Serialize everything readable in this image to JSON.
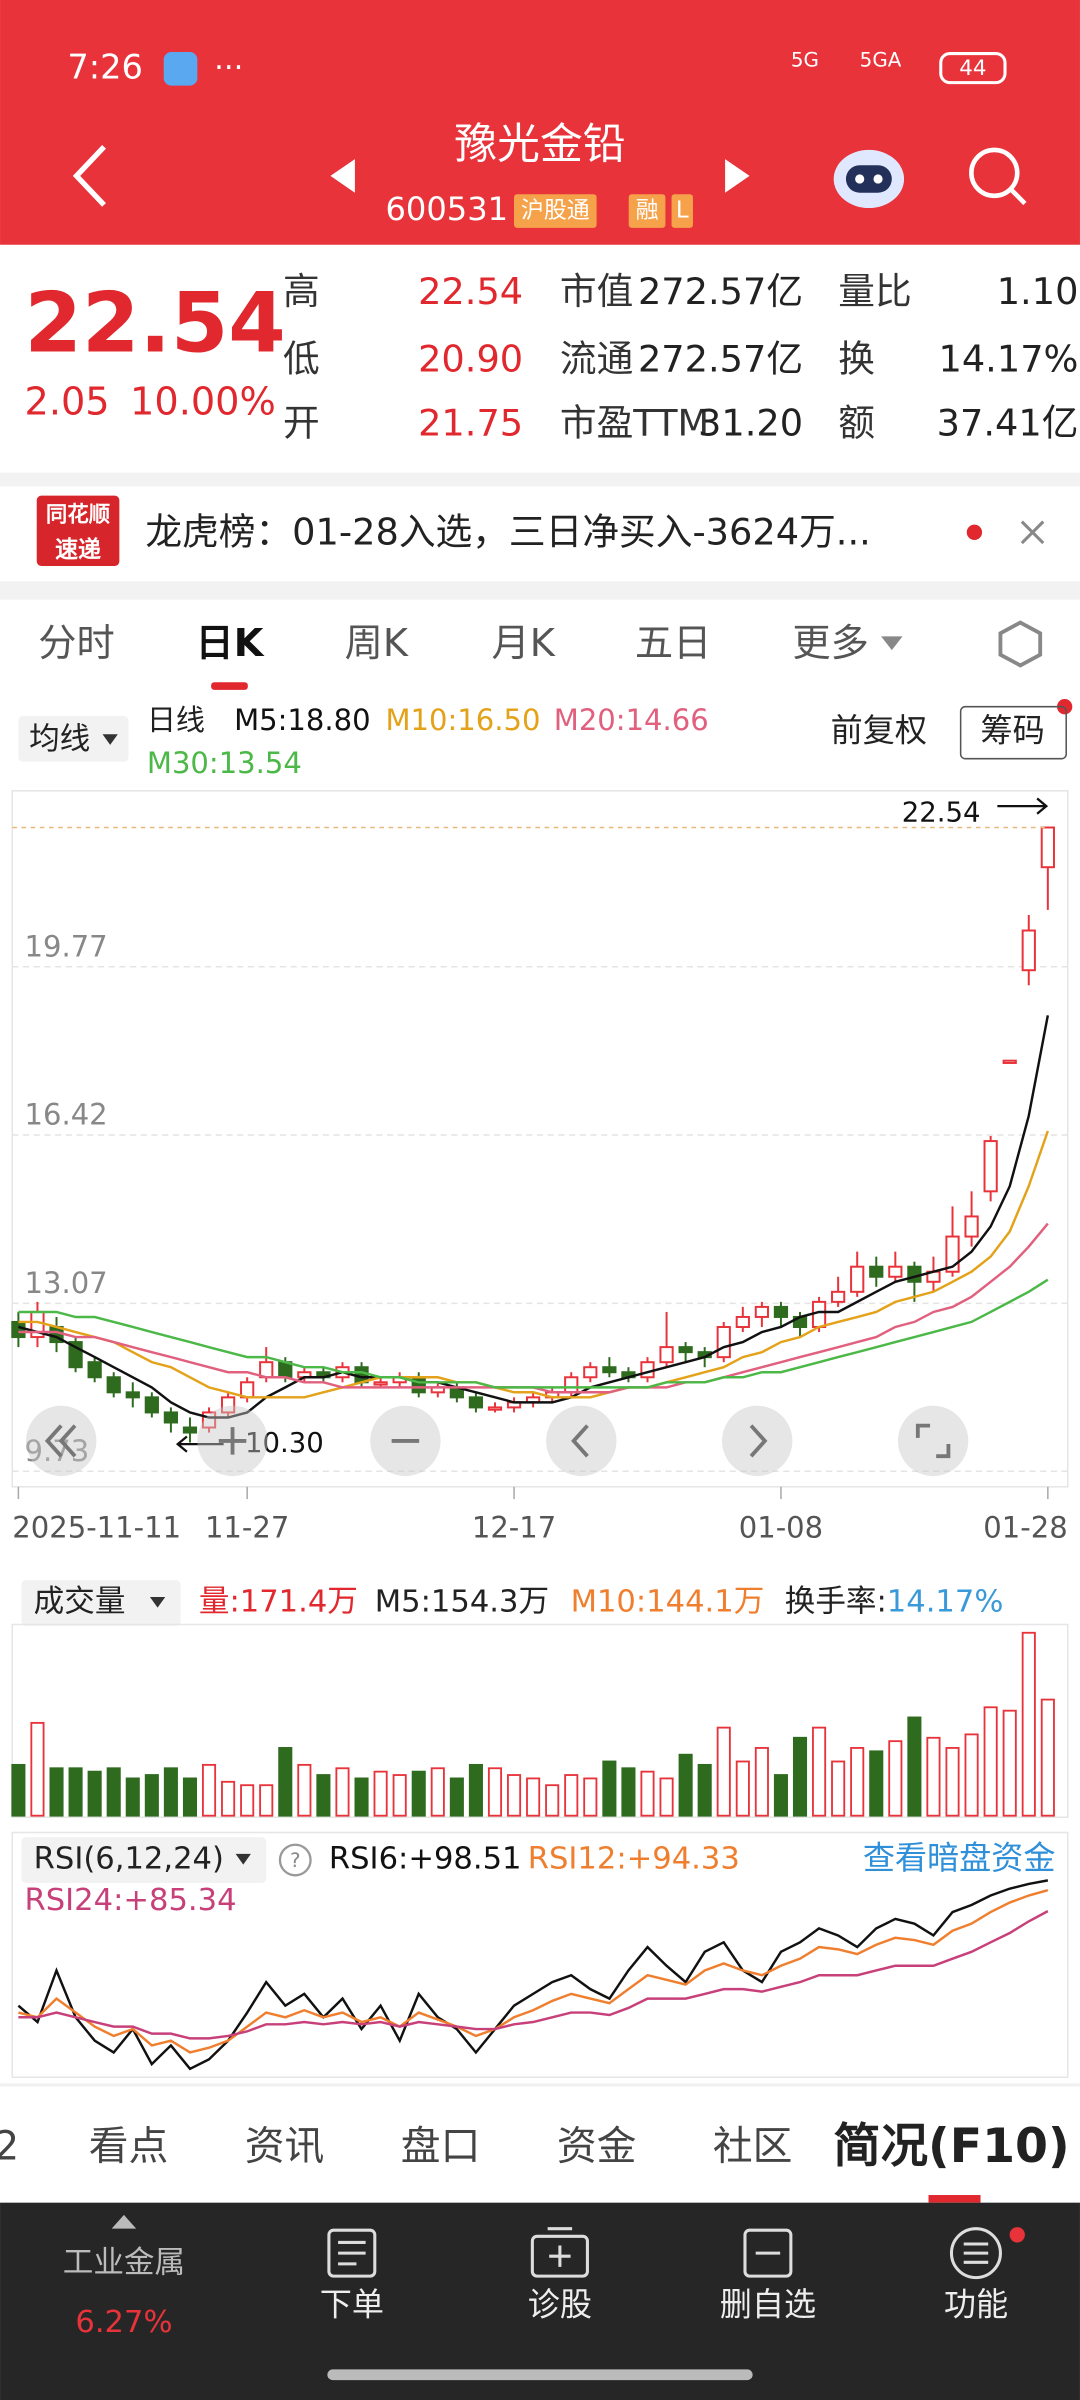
{
  "status_bar": {
    "time": "7:26",
    "network": [
      "5G",
      "5GA"
    ],
    "battery": "44"
  },
  "header": {
    "title": "豫光金铅",
    "code": "600531",
    "tags": [
      "沪股通",
      "融",
      "L"
    ]
  },
  "quote": {
    "price": "22.54",
    "change": "2.05",
    "change_pct": "10.00%",
    "columns": [
      [
        {
          "label": "高",
          "value": "22.54"
        },
        {
          "label": "低",
          "value": "20.90"
        },
        {
          "label": "开",
          "value": "21.75"
        }
      ],
      [
        {
          "label": "市值",
          "value": "272.57亿"
        },
        {
          "label": "流通",
          "value": "272.57亿"
        },
        {
          "label": "市盈TTM",
          "value": "31.20"
        }
      ],
      [
        {
          "label": "量比",
          "value": "1.10"
        },
        {
          "label": "换",
          "value": "14.17%"
        },
        {
          "label": "额",
          "value": "37.41亿"
        }
      ]
    ]
  },
  "news": {
    "source": [
      "同花顺",
      "速递"
    ],
    "text": "龙虎榜：01-28入选，三日净买入-3624万..."
  },
  "tabs": [
    "分时",
    "日K",
    "周K",
    "月K",
    "五日",
    "更多"
  ],
  "kline": {
    "type": "candlestick",
    "ma_button": "均线",
    "period": "日线",
    "adjust": "前复权",
    "chips": "筹码",
    "categories": [
      "2025-11-11",
      null,
      null,
      null,
      null,
      null,
      null,
      null,
      null,
      null,
      null,
      null,
      "11-27",
      null,
      null,
      null,
      null,
      null,
      null,
      null,
      null,
      null,
      null,
      null,
      null,
      null,
      "12-17",
      null,
      null,
      null,
      null,
      null,
      null,
      null,
      null,
      null,
      null,
      null,
      null,
      null,
      "01-08",
      null,
      null,
      null,
      null,
      null,
      null,
      null,
      null,
      null,
      null,
      null,
      null,
      null,
      "01-28"
    ],
    "candles": [
      [
        12.7,
        12.4,
        12.9,
        12.2
      ],
      [
        12.4,
        12.9,
        13.1,
        12.2
      ],
      [
        12.6,
        12.3,
        12.8,
        12.1
      ],
      [
        12.3,
        11.8,
        12.4,
        11.7
      ],
      [
        11.9,
        11.6,
        12.0,
        11.5
      ],
      [
        11.6,
        11.3,
        11.7,
        11.2
      ],
      [
        11.3,
        11.2,
        11.5,
        11.0
      ],
      [
        11.2,
        10.9,
        11.3,
        10.8
      ],
      [
        10.9,
        10.7,
        11.0,
        10.5
      ],
      [
        10.6,
        10.5,
        10.8,
        10.3
      ],
      [
        10.6,
        10.9,
        11.0,
        10.5
      ],
      [
        10.9,
        11.2,
        11.3,
        10.8
      ],
      [
        11.2,
        11.5,
        11.6,
        11.1
      ],
      [
        11.6,
        11.9,
        12.2,
        11.5
      ],
      [
        11.9,
        11.6,
        12.0,
        11.5
      ],
      [
        11.6,
        11.7,
        11.8,
        11.5
      ],
      [
        11.7,
        11.6,
        11.8,
        11.5
      ],
      [
        11.6,
        11.8,
        11.9,
        11.5
      ],
      [
        11.8,
        11.5,
        11.9,
        11.4
      ],
      [
        11.5,
        11.5,
        11.6,
        11.4
      ],
      [
        11.5,
        11.6,
        11.7,
        11.4
      ],
      [
        11.6,
        11.3,
        11.7,
        11.2
      ],
      [
        11.3,
        11.4,
        11.5,
        11.2
      ],
      [
        11.4,
        11.2,
        11.5,
        11.1
      ],
      [
        11.2,
        11.0,
        11.3,
        10.9
      ],
      [
        11.0,
        11.0,
        11.1,
        10.9
      ],
      [
        11.0,
        11.1,
        11.2,
        10.9
      ],
      [
        11.1,
        11.2,
        11.3,
        11.0
      ],
      [
        11.2,
        11.3,
        11.4,
        11.1
      ],
      [
        11.3,
        11.6,
        11.7,
        11.2
      ],
      [
        11.6,
        11.8,
        11.9,
        11.5
      ],
      [
        11.8,
        11.7,
        12.0,
        11.6
      ],
      [
        11.7,
        11.6,
        11.8,
        11.5
      ],
      [
        11.6,
        11.9,
        12.0,
        11.5
      ],
      [
        11.9,
        12.2,
        12.9,
        11.8
      ],
      [
        12.2,
        12.1,
        12.3,
        11.9
      ],
      [
        12.1,
        12.0,
        12.2,
        11.8
      ],
      [
        12.0,
        12.6,
        12.7,
        11.9
      ],
      [
        12.6,
        12.8,
        13.0,
        12.5
      ],
      [
        12.8,
        13.0,
        13.1,
        12.6
      ],
      [
        13.0,
        12.8,
        13.1,
        12.6
      ],
      [
        12.8,
        12.6,
        12.9,
        12.4
      ],
      [
        12.6,
        13.1,
        13.2,
        12.5
      ],
      [
        13.1,
        13.3,
        13.6,
        13.0
      ],
      [
        13.3,
        13.8,
        14.1,
        13.2
      ],
      [
        13.8,
        13.6,
        14.0,
        13.4
      ],
      [
        13.6,
        13.8,
        14.1,
        13.5
      ],
      [
        13.8,
        13.5,
        13.9,
        13.1
      ],
      [
        13.5,
        13.7,
        14.0,
        13.3
      ],
      [
        13.7,
        14.4,
        15.0,
        13.6
      ],
      [
        14.4,
        14.8,
        15.3,
        14.2
      ],
      [
        15.3,
        16.3,
        16.4,
        15.1
      ],
      [
        17.9,
        17.9,
        17.9,
        17.9
      ],
      [
        19.7,
        20.49,
        20.8,
        19.4
      ],
      [
        21.75,
        22.54,
        22.54,
        20.9
      ]
    ],
    "ylim": [
      9.42,
      23.27
    ],
    "yticks": [
      19.77,
      16.42,
      13.07,
      9.73
    ],
    "high_label": "22.54",
    "low_label": "10.30",
    "up_color": "#e8333a",
    "down_color": "#2f6b1f",
    "series": [
      {
        "name": "M5:18.80",
        "color": "#111111",
        "values": [
          12.6,
          12.5,
          12.4,
          12.2,
          12.0,
          11.8,
          11.6,
          11.4,
          11.1,
          10.9,
          10.8,
          10.8,
          10.9,
          11.2,
          11.4,
          11.6,
          11.6,
          11.7,
          11.6,
          11.6,
          11.6,
          11.5,
          11.5,
          11.4,
          11.3,
          11.2,
          11.1,
          11.1,
          11.1,
          11.2,
          11.4,
          11.5,
          11.6,
          11.7,
          11.8,
          11.9,
          12.0,
          12.2,
          12.3,
          12.5,
          12.6,
          12.8,
          12.9,
          12.9,
          13.1,
          13.3,
          13.5,
          13.6,
          13.7,
          13.8,
          14.1,
          14.6,
          15.4,
          16.8,
          18.8
        ]
      },
      {
        "name": "M10:16.50",
        "color": "#e3a21a",
        "values": [
          12.7,
          12.7,
          12.6,
          12.5,
          12.4,
          12.3,
          12.1,
          11.9,
          11.8,
          11.6,
          11.4,
          11.3,
          11.2,
          11.2,
          11.2,
          11.2,
          11.3,
          11.4,
          11.5,
          11.6,
          11.6,
          11.6,
          11.6,
          11.5,
          11.5,
          11.4,
          11.3,
          11.3,
          11.2,
          11.2,
          11.2,
          11.3,
          11.4,
          11.4,
          11.5,
          11.6,
          11.7,
          11.8,
          12.0,
          12.1,
          12.3,
          12.4,
          12.6,
          12.7,
          12.8,
          12.9,
          13.1,
          13.2,
          13.3,
          13.5,
          13.7,
          14.0,
          14.5,
          15.4,
          16.5
        ]
      },
      {
        "name": "M20:14.66",
        "color": "#e0607e",
        "values": [
          12.5,
          12.5,
          12.5,
          12.4,
          12.4,
          12.3,
          12.2,
          12.1,
          12.0,
          11.9,
          11.8,
          11.7,
          11.7,
          11.6,
          11.6,
          11.5,
          11.5,
          11.4,
          11.4,
          11.4,
          11.4,
          11.4,
          11.4,
          11.4,
          11.4,
          11.4,
          11.4,
          11.4,
          11.3,
          11.3,
          11.3,
          11.3,
          11.4,
          11.4,
          11.4,
          11.5,
          11.5,
          11.6,
          11.7,
          11.8,
          11.9,
          12.0,
          12.1,
          12.2,
          12.3,
          12.4,
          12.6,
          12.7,
          12.9,
          13.0,
          13.2,
          13.5,
          13.8,
          14.2,
          14.66
        ]
      },
      {
        "name": "M30:13.54",
        "color": "#4cb848",
        "values": [
          12.9,
          12.9,
          12.9,
          12.8,
          12.8,
          12.7,
          12.6,
          12.5,
          12.4,
          12.3,
          12.2,
          12.1,
          12.0,
          12.0,
          11.9,
          11.8,
          11.8,
          11.7,
          11.7,
          11.6,
          11.6,
          11.5,
          11.5,
          11.5,
          11.5,
          11.4,
          11.4,
          11.4,
          11.4,
          11.4,
          11.4,
          11.4,
          11.4,
          11.4,
          11.5,
          11.5,
          11.5,
          11.6,
          11.6,
          11.7,
          11.7,
          11.8,
          11.9,
          12.0,
          12.1,
          12.2,
          12.3,
          12.4,
          12.5,
          12.6,
          12.7,
          12.9,
          13.1,
          13.3,
          13.54
        ]
      }
    ]
  },
  "volume": {
    "type": "bar",
    "button": "成交量",
    "legend": [
      {
        "text": "量:171.4万",
        "color": "#e0282e"
      },
      {
        "text": "M5:154.3万",
        "color": "#222222"
      },
      {
        "text": "M10:144.1万",
        "color": "#ef7f2f"
      }
    ],
    "turnover_label": "换手率:",
    "turnover": "14.17%",
    "ylim": [
      0,
      280
    ],
    "values": [
      75,
      137,
      70,
      70,
      65,
      70,
      55,
      60,
      70,
      55,
      75,
      50,
      45,
      45,
      100,
      75,
      60,
      70,
      55,
      65,
      60,
      65,
      70,
      55,
      75,
      70,
      60,
      55,
      45,
      60,
      55,
      80,
      70,
      65,
      55,
      90,
      75,
      130,
      80,
      100,
      60,
      115,
      130,
      80,
      100,
      95,
      110,
      145,
      115,
      100,
      120,
      160,
      155,
      270,
      171.4
    ]
  },
  "rsi": {
    "type": "line",
    "button": "RSI(6,12,24)",
    "link": "查看暗盘资金",
    "ylim": [
      0,
      100
    ],
    "series": [
      {
        "name": "RSI6:+98.51",
        "color": "#111111",
        "values": [
          45,
          38,
          60,
          40,
          30,
          25,
          35,
          20,
          28,
          18,
          22,
          30,
          42,
          55,
          45,
          50,
          40,
          48,
          35,
          45,
          30,
          50,
          40,
          35,
          25,
          35,
          45,
          50,
          55,
          58,
          52,
          48,
          60,
          70,
          62,
          55,
          68,
          72,
          60,
          55,
          68,
          72,
          78,
          75,
          70,
          78,
          82,
          80,
          75,
          85,
          88,
          92,
          95,
          97,
          98.51
        ]
      },
      {
        "name": "RSI12:+94.33",
        "color": "#ef7f2f",
        "values": [
          42,
          40,
          48,
          42,
          36,
          32,
          35,
          28,
          30,
          25,
          27,
          30,
          36,
          42,
          40,
          43,
          40,
          42,
          38,
          40,
          36,
          42,
          39,
          36,
          32,
          35,
          40,
          43,
          47,
          50,
          48,
          46,
          52,
          58,
          56,
          54,
          60,
          63,
          60,
          58,
          62,
          65,
          70,
          69,
          67,
          71,
          74,
          73,
          71,
          77,
          80,
          85,
          89,
          92,
          94.33
        ]
      },
      {
        "name": "RSI24:+85.34",
        "color": "#c8407a",
        "values": [
          40,
          40,
          42,
          40,
          38,
          36,
          36,
          33,
          33,
          31,
          31,
          32,
          34,
          37,
          37,
          38,
          37,
          38,
          37,
          38,
          36,
          38,
          37,
          36,
          35,
          35,
          37,
          38,
          40,
          42,
          42,
          41,
          44,
          48,
          48,
          48,
          50,
          52,
          52,
          51,
          53,
          55,
          58,
          58,
          58,
          60,
          62,
          62,
          62,
          65,
          68,
          72,
          76,
          81,
          85.34
        ]
      }
    ]
  },
  "bottom_tabs": [
    "2",
    "看点",
    "资讯",
    "盘口",
    "资金",
    "社区",
    "简况(F10)"
  ],
  "nav": {
    "sector": "工业金属",
    "sector_change": "6.27%",
    "items": [
      "下单",
      "诊股",
      "删自选",
      "功能"
    ]
  }
}
